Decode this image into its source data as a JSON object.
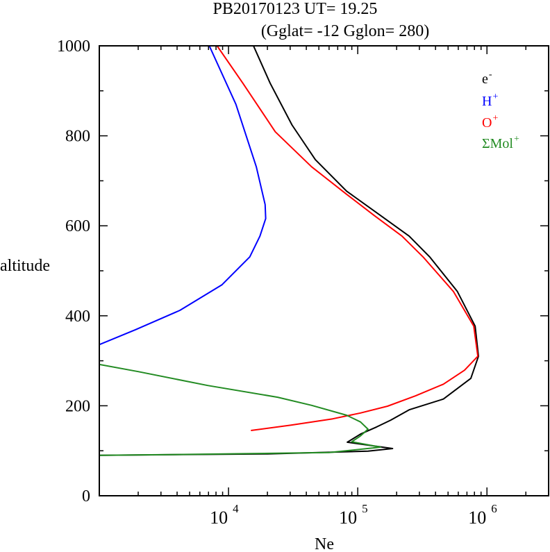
{
  "chart_data": {
    "type": "line",
    "title": "PB20170123   UT=  19.25",
    "subtitle": "(Gglat= -12   Gglon=  280)",
    "xlabel": "Ne",
    "ylabel": "altitude",
    "xscale": "log",
    "xlim": [
      1000,
      3000000
    ],
    "ylim": [
      0,
      1000
    ],
    "x_ticks": [
      {
        "value": 10000,
        "base": "10",
        "exp": "4"
      },
      {
        "value": 100000,
        "base": "10",
        "exp": "5"
      },
      {
        "value": 1000000,
        "base": "10",
        "exp": "6"
      }
    ],
    "y_ticks": [
      {
        "value": 0,
        "label": "0"
      },
      {
        "value": 200,
        "label": "200"
      },
      {
        "value": 400,
        "label": "400"
      },
      {
        "value": 600,
        "label": "600"
      },
      {
        "value": 800,
        "label": "800"
      },
      {
        "value": 1000,
        "label": "1000"
      }
    ],
    "grid": false,
    "legend_position": "top-right",
    "series": [
      {
        "name": "e-",
        "label_base": "e",
        "label_sup": "-",
        "color": "#000000",
        "points": [
          [
            15600,
            1000
          ],
          [
            21000,
            917
          ],
          [
            31000,
            824
          ],
          [
            47000,
            747
          ],
          [
            82000,
            677
          ],
          [
            150000,
            623
          ],
          [
            250000,
            577
          ],
          [
            360000,
            531
          ],
          [
            590000,
            454
          ],
          [
            810000,
            377
          ],
          [
            860000,
            310
          ],
          [
            750000,
            261
          ],
          [
            460000,
            215
          ],
          [
            250000,
            191
          ],
          [
            180000,
            168
          ],
          [
            140000,
            153
          ],
          [
            105000,
            137
          ],
          [
            83000,
            119
          ],
          [
            186000,
            105
          ],
          [
            120000,
            99
          ],
          [
            20000,
            93
          ],
          [
            1000,
            90
          ]
        ]
      },
      {
        "name": "H+",
        "label_base": "H",
        "label_sup": "+",
        "color": "#0000ff",
        "points": [
          [
            7100,
            1000
          ],
          [
            11400,
            870
          ],
          [
            16400,
            731
          ],
          [
            19200,
            647
          ],
          [
            19400,
            616
          ],
          [
            17500,
            577
          ],
          [
            14600,
            531
          ],
          [
            8900,
            469
          ],
          [
            4200,
            412
          ],
          [
            1900,
            369
          ],
          [
            1000,
            336
          ]
        ]
      },
      {
        "name": "O+",
        "label_base": "O",
        "label_sup": "+",
        "color": "#ff0000",
        "points": [
          [
            8160,
            1000
          ],
          [
            12900,
            917
          ],
          [
            23000,
            809
          ],
          [
            44000,
            731
          ],
          [
            82000,
            670
          ],
          [
            134000,
            623
          ],
          [
            220000,
            577
          ],
          [
            320000,
            531
          ],
          [
            550000,
            454
          ],
          [
            790000,
            377
          ],
          [
            850000,
            310
          ],
          [
            670000,
            279
          ],
          [
            460000,
            248
          ],
          [
            280000,
            222
          ],
          [
            170000,
            199
          ],
          [
            105000,
            184
          ],
          [
            64000,
            171
          ],
          [
            30500,
            157
          ],
          [
            14900,
            145
          ]
        ]
      },
      {
        "name": "ΣMol+",
        "label_base": "ΣMol",
        "label_sup": "+",
        "color": "#228b22",
        "points": [
          [
            1000,
            292
          ],
          [
            2000,
            276
          ],
          [
            6900,
            245
          ],
          [
            24000,
            219
          ],
          [
            44000,
            201
          ],
          [
            82000,
            179
          ],
          [
            105000,
            164
          ],
          [
            120000,
            148
          ],
          [
            105000,
            133
          ],
          [
            90000,
            120
          ],
          [
            150000,
            108
          ],
          [
            60000,
            96
          ],
          [
            5000,
            92
          ],
          [
            1000,
            90
          ]
        ]
      }
    ]
  }
}
